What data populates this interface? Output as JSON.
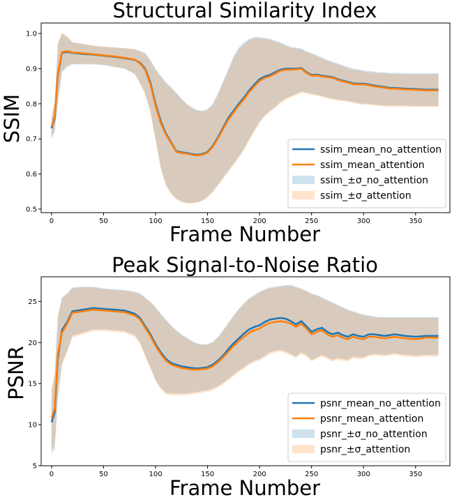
{
  "chart_data": [
    {
      "type": "line",
      "title": "Structural Similarity Index",
      "xlabel": "Frame Number",
      "ylabel": "SSIM",
      "xlim": [
        -10,
        383
      ],
      "ylim": [
        0.49,
        1.03
      ],
      "xticks": [
        0,
        50,
        100,
        150,
        200,
        250,
        300,
        350
      ],
      "yticks": [
        0.5,
        0.6,
        0.7,
        0.8,
        0.9,
        1.0
      ],
      "ytick_labels": [
        "0.5",
        "0.6",
        "0.7",
        "0.8",
        "0.9",
        "1.0"
      ],
      "legend_position": "lower-right",
      "x": [
        0,
        3,
        6,
        10,
        15,
        20,
        30,
        40,
        50,
        60,
        70,
        80,
        85,
        90,
        95,
        100,
        105,
        110,
        115,
        120,
        125,
        130,
        135,
        140,
        145,
        150,
        155,
        160,
        165,
        170,
        175,
        180,
        185,
        190,
        195,
        200,
        205,
        210,
        215,
        220,
        225,
        230,
        235,
        240,
        245,
        250,
        255,
        260,
        265,
        270,
        275,
        280,
        285,
        290,
        295,
        300,
        305,
        310,
        315,
        320,
        325,
        330,
        340,
        350,
        360,
        372
      ],
      "series": [
        {
          "name": "ssim_mean_no_attention",
          "color": "#1f77b4",
          "values": [
            0.73,
            0.76,
            0.88,
            0.945,
            0.948,
            0.945,
            0.942,
            0.94,
            0.937,
            0.934,
            0.93,
            0.925,
            0.917,
            0.9,
            0.86,
            0.8,
            0.75,
            0.715,
            0.69,
            0.665,
            0.662,
            0.66,
            0.657,
            0.655,
            0.657,
            0.663,
            0.68,
            0.705,
            0.732,
            0.76,
            0.78,
            0.8,
            0.818,
            0.838,
            0.855,
            0.87,
            0.878,
            0.882,
            0.89,
            0.897,
            0.9,
            0.9,
            0.9,
            0.902,
            0.89,
            0.882,
            0.883,
            0.88,
            0.878,
            0.876,
            0.87,
            0.866,
            0.862,
            0.858,
            0.857,
            0.857,
            0.855,
            0.852,
            0.85,
            0.848,
            0.845,
            0.845,
            0.843,
            0.842,
            0.84,
            0.84
          ]
        },
        {
          "name": "ssim_mean_attention",
          "color": "#ff7f0e",
          "values": [
            0.735,
            0.765,
            0.885,
            0.947,
            0.95,
            0.946,
            0.944,
            0.941,
            0.938,
            0.935,
            0.931,
            0.926,
            0.915,
            0.897,
            0.855,
            0.795,
            0.745,
            0.712,
            0.688,
            0.663,
            0.66,
            0.658,
            0.655,
            0.653,
            0.655,
            0.661,
            0.677,
            0.702,
            0.728,
            0.755,
            0.775,
            0.795,
            0.813,
            0.833,
            0.85,
            0.865,
            0.874,
            0.878,
            0.886,
            0.894,
            0.897,
            0.897,
            0.898,
            0.9,
            0.888,
            0.88,
            0.881,
            0.878,
            0.876,
            0.874,
            0.868,
            0.864,
            0.86,
            0.856,
            0.855,
            0.855,
            0.853,
            0.85,
            0.848,
            0.846,
            0.843,
            0.843,
            0.841,
            0.84,
            0.838,
            0.838
          ]
        },
        {
          "name": "ssim_±σ_no_attention",
          "kind": "band",
          "color": "#1f77b4",
          "upper": [
            0.76,
            0.8,
            0.97,
            1.0,
            0.99,
            0.975,
            0.97,
            0.965,
            0.962,
            0.96,
            0.958,
            0.955,
            0.95,
            0.945,
            0.925,
            0.9,
            0.88,
            0.862,
            0.848,
            0.832,
            0.815,
            0.8,
            0.79,
            0.782,
            0.78,
            0.785,
            0.8,
            0.83,
            0.865,
            0.9,
            0.935,
            0.96,
            0.975,
            0.985,
            0.99,
            0.99,
            0.988,
            0.985,
            0.98,
            0.975,
            0.968,
            0.962,
            0.96,
            0.958,
            0.95,
            0.945,
            0.938,
            0.932,
            0.925,
            0.92,
            0.915,
            0.91,
            0.905,
            0.9,
            0.898,
            0.895,
            0.893,
            0.892,
            0.89,
            0.89,
            0.888,
            0.888,
            0.887,
            0.887,
            0.887,
            0.887
          ],
          "lower": [
            0.7,
            0.72,
            0.8,
            0.89,
            0.905,
            0.912,
            0.912,
            0.912,
            0.91,
            0.905,
            0.9,
            0.885,
            0.86,
            0.83,
            0.78,
            0.7,
            0.62,
            0.57,
            0.545,
            0.53,
            0.522,
            0.518,
            0.518,
            0.52,
            0.525,
            0.535,
            0.55,
            0.57,
            0.59,
            0.61,
            0.63,
            0.65,
            0.672,
            0.7,
            0.725,
            0.75,
            0.768,
            0.78,
            0.792,
            0.805,
            0.815,
            0.822,
            0.828,
            0.835,
            0.832,
            0.828,
            0.826,
            0.822,
            0.818,
            0.815,
            0.812,
            0.81,
            0.808,
            0.805,
            0.802,
            0.8,
            0.8,
            0.798,
            0.797,
            0.795,
            0.795,
            0.795,
            0.795,
            0.794,
            0.794,
            0.794
          ]
        },
        {
          "name": "ssim_±σ_attention",
          "kind": "band",
          "color": "#ff7f0e",
          "upper": [
            0.765,
            0.805,
            0.972,
            1.002,
            0.992,
            0.976,
            0.971,
            0.966,
            0.963,
            0.961,
            0.959,
            0.956,
            0.949,
            0.943,
            0.922,
            0.896,
            0.876,
            0.858,
            0.845,
            0.829,
            0.812,
            0.798,
            0.788,
            0.78,
            0.778,
            0.783,
            0.797,
            0.826,
            0.86,
            0.895,
            0.93,
            0.955,
            0.97,
            0.981,
            0.986,
            0.986,
            0.985,
            0.982,
            0.977,
            0.972,
            0.965,
            0.959,
            0.957,
            0.955,
            0.947,
            0.942,
            0.935,
            0.929,
            0.922,
            0.917,
            0.912,
            0.907,
            0.902,
            0.897,
            0.895,
            0.892,
            0.89,
            0.889,
            0.887,
            0.887,
            0.885,
            0.885,
            0.884,
            0.884,
            0.884,
            0.884
          ],
          "lower": [
            0.705,
            0.725,
            0.805,
            0.892,
            0.908,
            0.914,
            0.914,
            0.914,
            0.911,
            0.906,
            0.901,
            0.884,
            0.856,
            0.825,
            0.775,
            0.695,
            0.615,
            0.566,
            0.541,
            0.527,
            0.519,
            0.516,
            0.516,
            0.518,
            0.523,
            0.533,
            0.548,
            0.567,
            0.586,
            0.606,
            0.626,
            0.646,
            0.668,
            0.695,
            0.72,
            0.745,
            0.764,
            0.776,
            0.788,
            0.801,
            0.811,
            0.818,
            0.824,
            0.831,
            0.829,
            0.825,
            0.823,
            0.819,
            0.815,
            0.812,
            0.809,
            0.807,
            0.805,
            0.802,
            0.799,
            0.797,
            0.797,
            0.795,
            0.794,
            0.792,
            0.792,
            0.792,
            0.792,
            0.791,
            0.791,
            0.791
          ]
        }
      ]
    },
    {
      "type": "line",
      "title": "Peak Signal-to-Noise Ratio",
      "xlabel": "Frame Number",
      "ylabel": "PSNR",
      "xlim": [
        -10,
        383
      ],
      "ylim": [
        5,
        28
      ],
      "xticks": [
        0,
        50,
        100,
        150,
        200,
        250,
        300,
        350
      ],
      "yticks": [
        5,
        10,
        15,
        20,
        25
      ],
      "ytick_labels": [
        "5",
        "10",
        "15",
        "20",
        "25"
      ],
      "legend_position": "lower-right",
      "x": [
        0,
        3,
        6,
        10,
        15,
        20,
        30,
        40,
        50,
        60,
        70,
        80,
        85,
        90,
        95,
        100,
        105,
        110,
        115,
        120,
        125,
        130,
        135,
        140,
        145,
        150,
        155,
        160,
        165,
        170,
        175,
        180,
        185,
        190,
        195,
        200,
        205,
        210,
        215,
        220,
        225,
        230,
        235,
        240,
        245,
        250,
        255,
        260,
        265,
        270,
        275,
        280,
        285,
        290,
        295,
        300,
        305,
        310,
        315,
        320,
        325,
        330,
        340,
        350,
        360,
        372
      ],
      "series": [
        {
          "name": "psnr_mean_no_attention",
          "color": "#1f77b4",
          "values": [
            10.3,
            11.5,
            18.0,
            21.5,
            22.5,
            23.8,
            24.0,
            24.2,
            24.1,
            24.0,
            23.9,
            23.5,
            23.0,
            22.0,
            21.0,
            19.8,
            18.8,
            18.0,
            17.5,
            17.3,
            17.1,
            17.0,
            16.9,
            16.85,
            16.9,
            17.0,
            17.3,
            17.8,
            18.4,
            19.2,
            19.9,
            20.5,
            21.1,
            21.6,
            21.9,
            22.1,
            22.5,
            22.8,
            22.9,
            23.0,
            22.9,
            22.6,
            22.2,
            22.6,
            22.0,
            21.3,
            21.6,
            21.8,
            21.3,
            21.0,
            21.2,
            20.9,
            20.7,
            21.0,
            20.8,
            20.7,
            21.0,
            21.0,
            20.9,
            20.8,
            20.9,
            21.0,
            20.8,
            20.7,
            20.8,
            20.8
          ]
        },
        {
          "name": "psnr_mean_attention",
          "color": "#ff7f0e",
          "values": [
            10.8,
            12.0,
            18.5,
            21.2,
            22.3,
            23.6,
            23.8,
            24.0,
            23.9,
            23.8,
            23.7,
            23.3,
            22.8,
            21.8,
            20.8,
            19.6,
            18.6,
            17.8,
            17.3,
            17.1,
            16.9,
            16.8,
            16.7,
            16.7,
            16.75,
            16.85,
            17.1,
            17.6,
            18.2,
            18.9,
            19.6,
            20.2,
            20.7,
            21.2,
            21.5,
            21.7,
            22.1,
            22.4,
            22.5,
            22.6,
            22.5,
            22.3,
            21.9,
            22.3,
            21.7,
            21.0,
            21.3,
            21.5,
            21.0,
            20.7,
            20.9,
            20.6,
            20.4,
            20.7,
            20.5,
            20.4,
            20.7,
            20.7,
            20.6,
            20.5,
            20.6,
            20.7,
            20.5,
            20.4,
            20.6,
            20.6
          ]
        },
        {
          "name": "psnr_±σ_no_attention",
          "kind": "band",
          "color": "#1f77b4",
          "upper": [
            14.0,
            16.0,
            23.0,
            25.5,
            26.0,
            26.7,
            26.8,
            26.8,
            26.6,
            26.5,
            26.4,
            26.2,
            26.0,
            25.5,
            25.0,
            24.3,
            23.5,
            22.8,
            22.1,
            21.5,
            21.0,
            20.6,
            20.2,
            19.9,
            19.8,
            19.8,
            20.1,
            20.7,
            21.5,
            22.4,
            23.3,
            24.1,
            24.8,
            25.4,
            25.8,
            26.2,
            26.5,
            26.7,
            26.8,
            26.9,
            27.0,
            27.0,
            26.8,
            26.6,
            26.3,
            26.0,
            25.8,
            25.5,
            25.2,
            24.9,
            24.6,
            24.3,
            24.0,
            23.8,
            23.6,
            23.4,
            23.3,
            23.2,
            23.1,
            23.1,
            23.1,
            23.1,
            23.1,
            23.1,
            23.1,
            23.1
          ],
          "lower": [
            6.5,
            7.0,
            13.0,
            17.5,
            19.0,
            20.8,
            21.2,
            21.6,
            21.6,
            21.5,
            21.4,
            20.9,
            20.0,
            18.5,
            17.0,
            15.5,
            14.5,
            13.9,
            13.8,
            13.8,
            13.8,
            13.8,
            13.9,
            14.0,
            14.1,
            14.2,
            14.4,
            14.7,
            15.1,
            15.6,
            16.1,
            16.6,
            17.0,
            17.5,
            17.8,
            18.0,
            18.4,
            18.8,
            19.0,
            19.1,
            18.9,
            18.6,
            18.3,
            18.8,
            18.5,
            17.9,
            18.2,
            18.5,
            18.2,
            17.9,
            18.1,
            18.0,
            17.9,
            18.3,
            18.2,
            18.2,
            18.5,
            18.6,
            18.6,
            18.5,
            18.6,
            18.7,
            18.5,
            18.4,
            18.5,
            18.5
          ]
        },
        {
          "name": "psnr_±σ_attention",
          "kind": "band",
          "color": "#ff7f0e",
          "upper": [
            14.5,
            16.4,
            23.3,
            25.4,
            25.9,
            26.6,
            26.7,
            26.7,
            26.5,
            26.4,
            26.3,
            26.1,
            25.9,
            25.4,
            24.9,
            24.2,
            23.4,
            22.7,
            22.0,
            21.4,
            20.9,
            20.5,
            20.1,
            19.8,
            19.7,
            19.7,
            20.0,
            20.6,
            21.4,
            22.3,
            23.2,
            24.0,
            24.7,
            25.3,
            25.7,
            26.1,
            26.4,
            26.6,
            26.7,
            26.8,
            26.9,
            26.9,
            26.7,
            26.5,
            26.2,
            25.9,
            25.7,
            25.4,
            25.1,
            24.8,
            24.5,
            24.2,
            23.9,
            23.7,
            23.5,
            23.3,
            23.2,
            23.1,
            23.0,
            23.0,
            23.0,
            23.0,
            23.0,
            23.0,
            23.0,
            23.0
          ],
          "lower": [
            7.0,
            7.5,
            13.5,
            17.2,
            18.8,
            20.6,
            21.0,
            21.4,
            21.4,
            21.3,
            21.2,
            20.7,
            19.8,
            18.3,
            16.8,
            15.3,
            14.3,
            13.7,
            13.6,
            13.6,
            13.6,
            13.6,
            13.7,
            13.8,
            13.9,
            14.0,
            14.2,
            14.5,
            14.9,
            15.4,
            15.9,
            16.4,
            16.8,
            17.3,
            17.6,
            17.8,
            18.2,
            18.6,
            18.8,
            18.9,
            18.7,
            18.4,
            18.1,
            18.6,
            18.3,
            17.7,
            18.0,
            18.3,
            18.0,
            17.7,
            17.9,
            17.8,
            17.7,
            18.1,
            18.0,
            18.0,
            18.3,
            18.4,
            18.4,
            18.3,
            18.4,
            18.5,
            18.3,
            18.2,
            18.3,
            18.3
          ]
        }
      ]
    }
  ]
}
